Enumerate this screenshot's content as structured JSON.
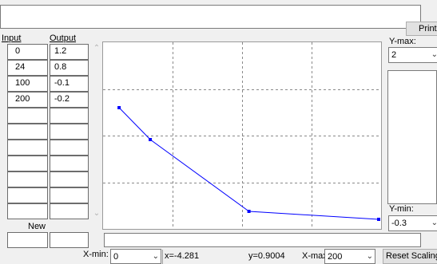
{
  "header": {
    "print_label": "Print"
  },
  "table": {
    "col_input": "Input",
    "col_output": "Output",
    "rows": [
      {
        "input": "0",
        "output": "1.2"
      },
      {
        "input": "24",
        "output": "0.8"
      },
      {
        "input": "100",
        "output": "-0.1"
      },
      {
        "input": "200",
        "output": "-0.2"
      },
      {
        "input": "",
        "output": ""
      },
      {
        "input": "",
        "output": ""
      },
      {
        "input": "",
        "output": ""
      },
      {
        "input": "",
        "output": ""
      },
      {
        "input": "",
        "output": ""
      },
      {
        "input": "",
        "output": ""
      },
      {
        "input": "",
        "output": ""
      }
    ],
    "new_label": "New",
    "new_input": "",
    "new_output": ""
  },
  "yaxis": {
    "ymax_label": "Y-max:",
    "ymax_value": "2",
    "ymin_label": "Y-min:",
    "ymin_value": "-0.3"
  },
  "xaxis": {
    "xmin_label": "X-min:",
    "xmin_value": "0",
    "xmax_label": "X-max:",
    "xmax_value": "200"
  },
  "readout": {
    "x": "x=-4.281",
    "y": "y=0.9004"
  },
  "reset_label": "Reset Scaling",
  "chart_data": {
    "type": "line",
    "x": [
      0,
      24,
      100,
      200
    ],
    "y": [
      1.2,
      0.8,
      -0.1,
      -0.2
    ],
    "xlim": [
      -5,
      200
    ],
    "ylim": [
      -0.3,
      2
    ],
    "grid": true,
    "line_color": "#0000ff"
  }
}
